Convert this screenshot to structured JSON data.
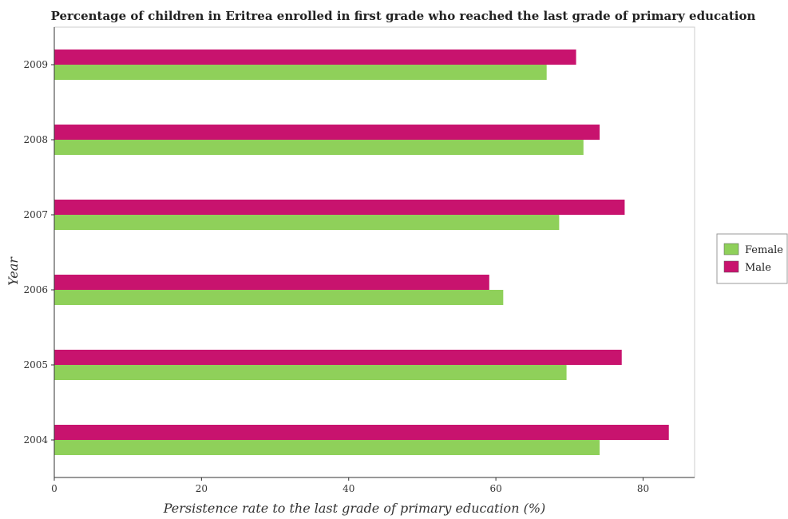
{
  "chart_data": {
    "type": "bar",
    "orientation": "horizontal",
    "title": "Percentage of children in Eritrea enrolled in first grade who reached the last grade of primary education",
    "xlabel": "Persistence rate to the last grade of primary education (%)",
    "ylabel": "Year",
    "xlim": [
      0,
      87
    ],
    "xticks": [
      0,
      20,
      40,
      60,
      80
    ],
    "categories": [
      "2004",
      "2005",
      "2006",
      "2007",
      "2008",
      "2009"
    ],
    "series": [
      {
        "name": "Female",
        "color": "#8fd05a",
        "values": [
          74.1,
          69.6,
          61.0,
          68.6,
          71.9,
          66.9
        ]
      },
      {
        "name": "Male",
        "color": "#c8136e",
        "values": [
          83.5,
          77.1,
          59.1,
          77.5,
          74.1,
          70.9
        ]
      }
    ],
    "legend_position": "right",
    "grid": false
  }
}
